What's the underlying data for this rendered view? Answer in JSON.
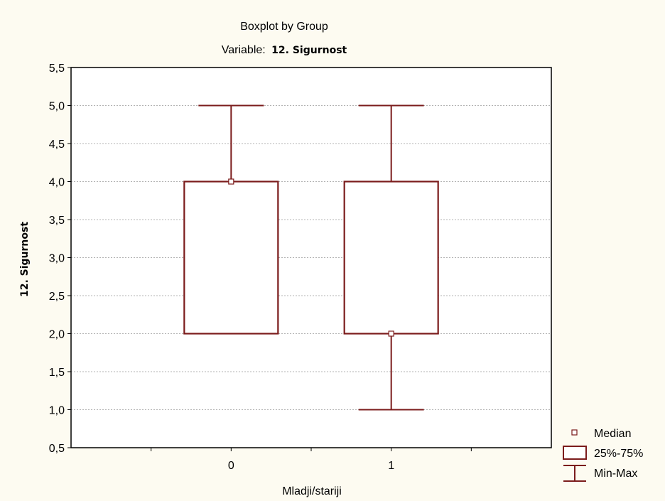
{
  "chart_data": {
    "type": "boxplot",
    "title": "Boxplot by Group",
    "subtitle_prefix": "Variable:",
    "subtitle_variable": "12. Sigurnost",
    "xlabel": "Mladji/stariji",
    "ylabel": "12. Sigurnost",
    "ylim": [
      0.5,
      5.5
    ],
    "yticks": [
      0.5,
      1.0,
      1.5,
      2.0,
      2.5,
      3.0,
      3.5,
      4.0,
      4.5,
      5.0,
      5.5
    ],
    "ytick_labels": [
      "0,5",
      "1,0",
      "1,5",
      "2,0",
      "2,5",
      "3,0",
      "3,5",
      "4,0",
      "4,5",
      "5,0",
      "5,5"
    ],
    "xlim": [
      -1,
      2
    ],
    "grid": true,
    "legend_position": "bottom-right",
    "colors": {
      "box": "#7b1c1c",
      "grid": "#9a9a9a",
      "background": "#fdfbf1",
      "plot_background": "#ffffff"
    },
    "groups": [
      {
        "label": "0",
        "x": 0,
        "min": 2.0,
        "q1": 2.0,
        "median": 4.0,
        "q3": 4.0,
        "max": 5.0
      },
      {
        "label": "1",
        "x": 1,
        "min": 1.0,
        "q1": 2.0,
        "median": 2.0,
        "q3": 4.0,
        "max": 5.0
      }
    ],
    "legend": [
      {
        "key": "median",
        "label": "Median"
      },
      {
        "key": "box",
        "label": "25%-75%"
      },
      {
        "key": "whisker",
        "label": "Min-Max"
      }
    ]
  }
}
